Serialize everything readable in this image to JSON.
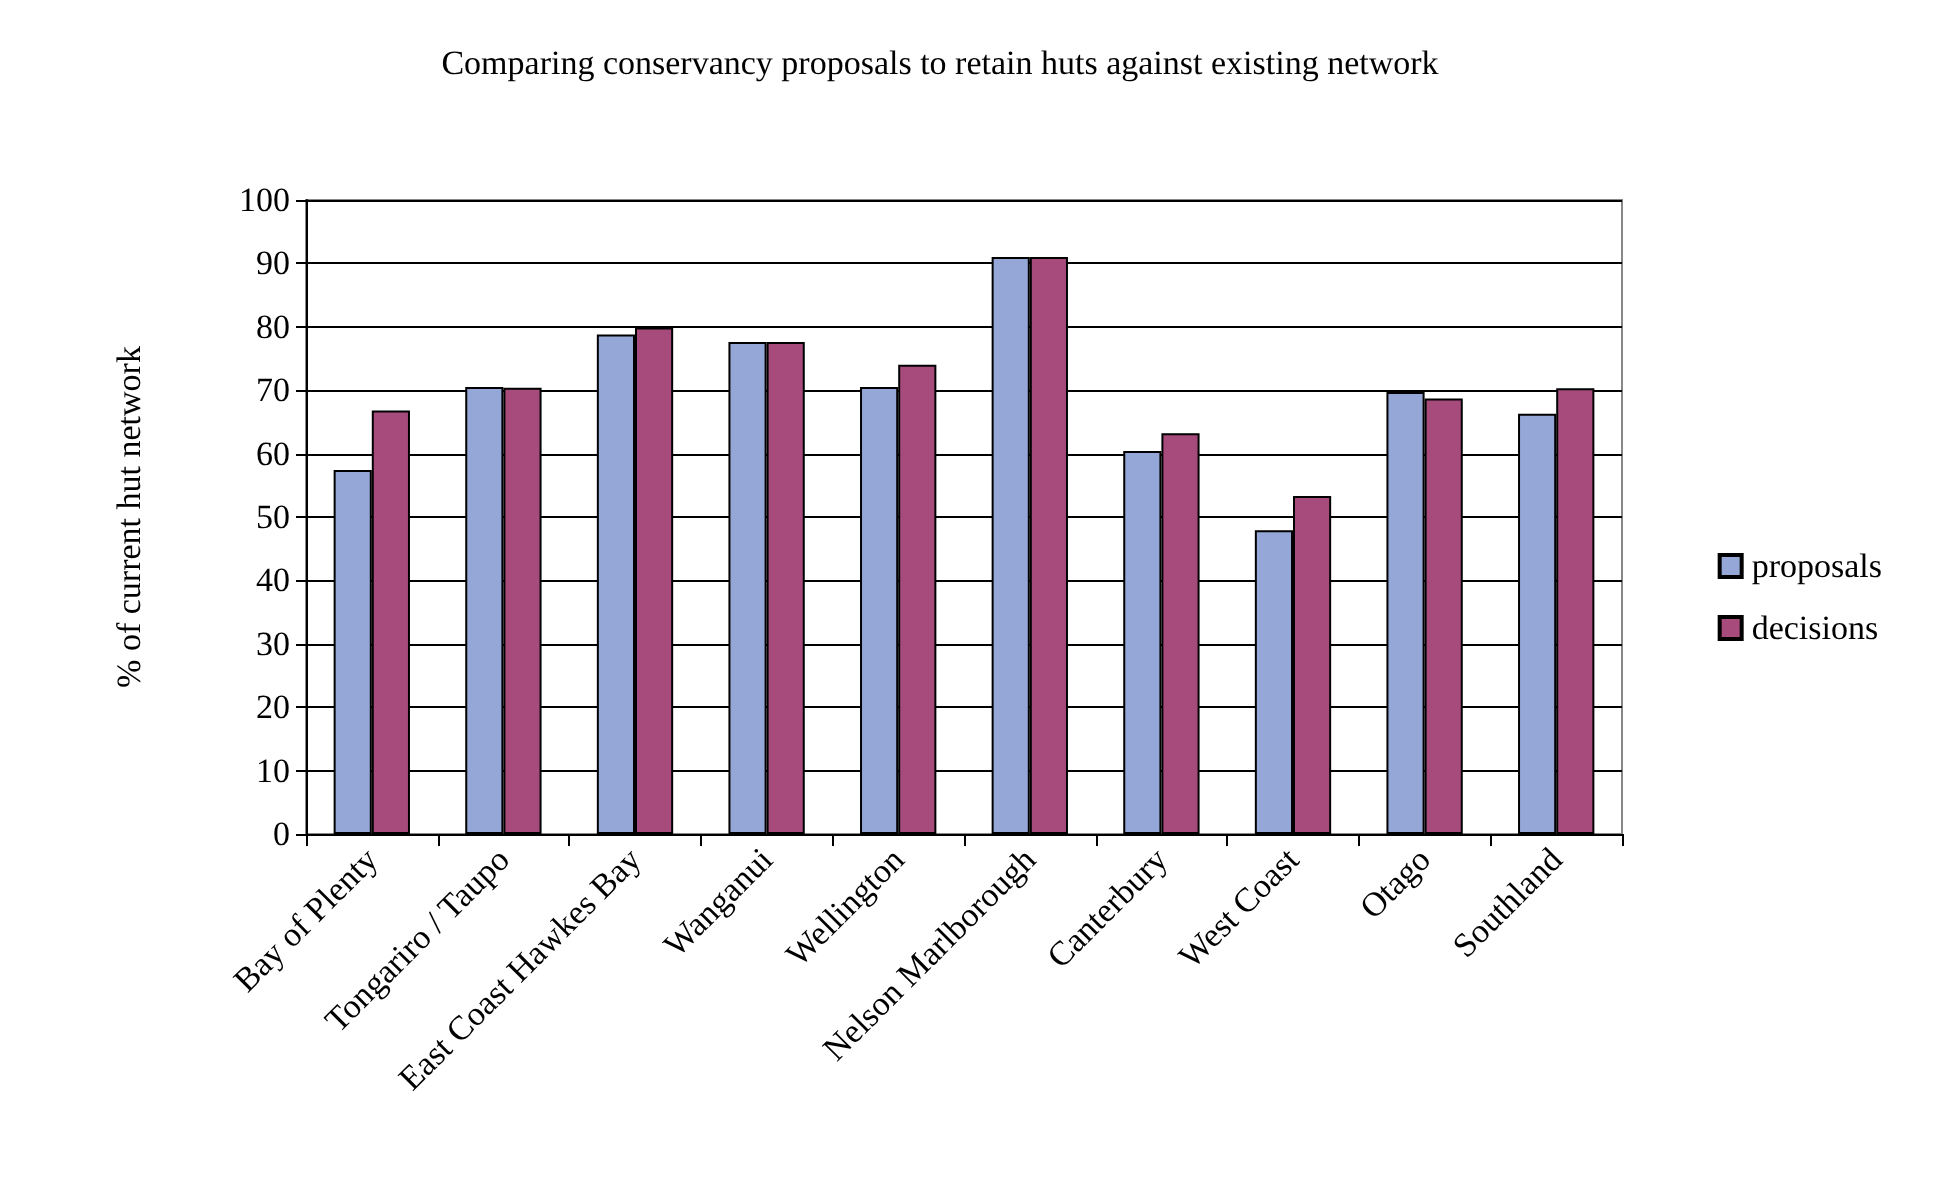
{
  "chart_data": {
    "type": "bar",
    "title": "Comparing conservancy proposals to retain huts against existing network",
    "ylabel": "% of current hut network",
    "categories": [
      "Bay of Plenty",
      "Tongariro / Taupo",
      "East Coast Hawkes Bay",
      "Wanganui",
      "Wellington",
      "Nelson Marlborough",
      "Canterbury",
      "West Coast",
      "Otago",
      "Southland"
    ],
    "series": [
      {
        "name": "proposals",
        "color": "#95a7d6",
        "values": [
          57.4,
          70.5,
          78.8,
          77.6,
          70.5,
          91.0,
          60.4,
          47.9,
          69.7,
          66.3
        ]
      },
      {
        "name": "decisions",
        "color": "#a64b7c",
        "values": [
          66.8,
          70.4,
          79.9,
          77.6,
          74.0,
          91.0,
          63.2,
          53.3,
          68.7,
          70.3
        ]
      }
    ],
    "ylim": [
      0,
      100
    ],
    "yticks": [
      0,
      10,
      20,
      30,
      40,
      50,
      60,
      70,
      80,
      90,
      100
    ],
    "grid": "y",
    "legend": "right"
  }
}
